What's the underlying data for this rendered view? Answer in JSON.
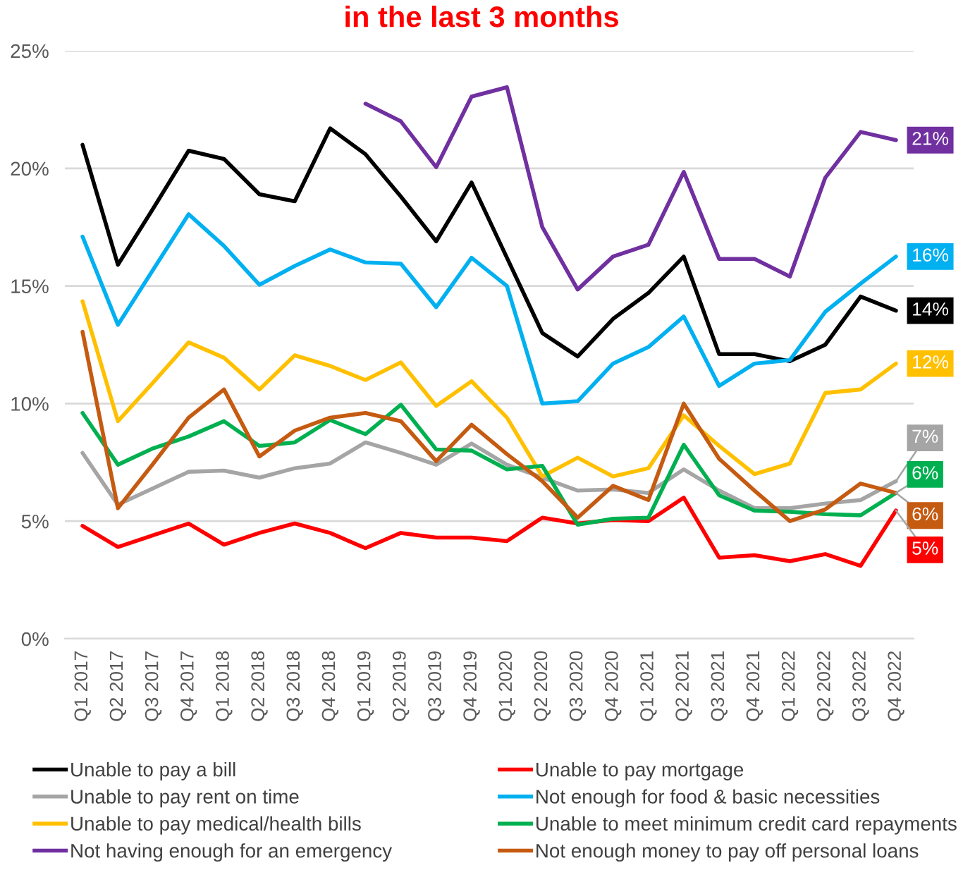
{
  "chart_data": {
    "type": "line",
    "title": "in the last 3 months",
    "categories": [
      "Q1 2017",
      "Q2 2017",
      "Q3 2017",
      "Q4 2017",
      "Q1 2018",
      "Q2 2018",
      "Q3 2018",
      "Q4 2018",
      "Q1 2019",
      "Q2 2019",
      "Q3 2019",
      "Q4 2019",
      "Q1 2020",
      "Q2 2020",
      "Q3 2020",
      "Q4 2020",
      "Q1 2021",
      "Q2 2021",
      "Q3 2021",
      "Q4 2021",
      "Q1 2022",
      "Q2 2022",
      "Q3 2022",
      "Q4 2022"
    ],
    "ylim": [
      0,
      25
    ],
    "yticks": [
      {
        "value": 0,
        "label": "0%"
      },
      {
        "value": 5,
        "label": "5%"
      },
      {
        "value": 10,
        "label": "10%"
      },
      {
        "value": 15,
        "label": "15%"
      },
      {
        "value": 20,
        "label": "20%"
      },
      {
        "value": 25,
        "label": "25%"
      }
    ],
    "grid": "y",
    "legend": "bottom",
    "series": [
      {
        "name": "Unable to pay a bill",
        "color": "#000000",
        "values": [
          21.0,
          15.9,
          18.3,
          20.75,
          20.4,
          18.9,
          18.6,
          21.7,
          20.6,
          18.8,
          16.9,
          19.4,
          16.2,
          13.0,
          12.0,
          13.6,
          14.7,
          16.25,
          12.1,
          12.1,
          11.8,
          12.5,
          14.55,
          13.95
        ],
        "value_labels": [
          null,
          null,
          null,
          null,
          null,
          null,
          null,
          null,
          null,
          null,
          null,
          null,
          null,
          null,
          null,
          null,
          null,
          null,
          null,
          null,
          null,
          null,
          null,
          "14%"
        ]
      },
      {
        "name": "Unable to pay mortgage",
        "color": "#ff0000",
        "values": [
          4.8,
          3.9,
          4.4,
          4.9,
          4.0,
          4.5,
          4.9,
          4.5,
          3.85,
          4.5,
          4.3,
          4.3,
          4.15,
          5.15,
          4.9,
          5.05,
          5.0,
          6.0,
          3.45,
          3.55,
          3.3,
          3.6,
          3.1,
          5.45
        ],
        "value_labels": [
          null,
          null,
          null,
          null,
          null,
          null,
          null,
          null,
          null,
          null,
          null,
          null,
          null,
          null,
          null,
          null,
          null,
          null,
          null,
          null,
          null,
          null,
          null,
          "5%"
        ]
      },
      {
        "name": "Unable to pay rent on time",
        "color": "#a5a5a5",
        "values": [
          7.9,
          5.7,
          6.4,
          7.1,
          7.15,
          6.85,
          7.25,
          7.45,
          8.35,
          7.9,
          7.4,
          8.3,
          7.4,
          6.85,
          6.3,
          6.35,
          6.2,
          7.2,
          6.3,
          5.55,
          5.55,
          5.75,
          5.9,
          6.7
        ],
        "value_labels": [
          null,
          null,
          null,
          null,
          null,
          null,
          null,
          null,
          null,
          null,
          null,
          null,
          null,
          null,
          null,
          null,
          null,
          null,
          null,
          null,
          null,
          null,
          null,
          "7%"
        ]
      },
      {
        "name": "Not enough for food & basic necessities",
        "color": "#00b0f0",
        "values": [
          17.1,
          13.35,
          15.7,
          18.05,
          16.7,
          15.05,
          15.85,
          16.55,
          16.0,
          15.95,
          14.1,
          16.2,
          15.0,
          10.0,
          10.1,
          11.7,
          12.4,
          13.7,
          10.75,
          11.7,
          11.85,
          13.9,
          15.1,
          16.25
        ],
        "value_labels": [
          null,
          null,
          null,
          null,
          null,
          null,
          null,
          null,
          null,
          null,
          null,
          null,
          null,
          null,
          null,
          null,
          null,
          null,
          null,
          null,
          null,
          null,
          null,
          "16%"
        ]
      },
      {
        "name": "Unable to pay medical/health bills",
        "color": "#ffc000",
        "values": [
          14.35,
          9.25,
          10.9,
          12.6,
          11.95,
          10.6,
          12.05,
          11.6,
          11.0,
          11.75,
          9.9,
          10.95,
          9.4,
          6.9,
          7.7,
          6.9,
          7.25,
          9.5,
          8.2,
          7.0,
          7.45,
          10.45,
          10.6,
          11.7
        ],
        "value_labels": [
          null,
          null,
          null,
          null,
          null,
          null,
          null,
          null,
          null,
          null,
          null,
          null,
          null,
          null,
          null,
          null,
          null,
          null,
          null,
          null,
          null,
          null,
          null,
          "12%"
        ]
      },
      {
        "name": "Unable to meet minimum credit card repayments",
        "color": "#00b050",
        "values": [
          9.6,
          7.4,
          8.1,
          8.6,
          9.25,
          8.2,
          8.35,
          9.3,
          8.7,
          9.95,
          8.05,
          8.0,
          7.2,
          7.35,
          4.85,
          5.1,
          5.15,
          8.25,
          6.1,
          5.45,
          5.4,
          5.3,
          5.25,
          6.2
        ],
        "value_labels": [
          null,
          null,
          null,
          null,
          null,
          null,
          null,
          null,
          null,
          null,
          null,
          null,
          null,
          null,
          null,
          null,
          null,
          null,
          null,
          null,
          null,
          null,
          null,
          "6%"
        ]
      },
      {
        "name": "Not having enough for an emergency",
        "color": "#7030a0",
        "values": [
          null,
          null,
          null,
          null,
          null,
          null,
          null,
          null,
          22.75,
          22.0,
          20.05,
          23.05,
          23.45,
          17.5,
          14.85,
          16.25,
          16.75,
          19.85,
          16.15,
          16.15,
          15.4,
          19.6,
          21.55,
          21.2
        ],
        "value_labels": [
          null,
          null,
          null,
          null,
          null,
          null,
          null,
          null,
          null,
          null,
          null,
          null,
          null,
          null,
          null,
          null,
          null,
          null,
          null,
          null,
          null,
          null,
          null,
          "21%"
        ]
      },
      {
        "name": "Not enough money to pay off personal loans",
        "color": "#c55a11",
        "values": [
          13.05,
          5.55,
          7.45,
          9.4,
          10.6,
          7.75,
          8.85,
          9.4,
          9.6,
          9.25,
          7.55,
          9.1,
          7.85,
          6.7,
          5.15,
          6.5,
          5.9,
          10.0,
          7.65,
          6.3,
          5.0,
          5.5,
          6.6,
          6.2
        ],
        "value_labels": [
          null,
          null,
          null,
          null,
          null,
          null,
          null,
          null,
          null,
          null,
          null,
          null,
          null,
          null,
          null,
          null,
          null,
          null,
          null,
          null,
          null,
          null,
          null,
          "6%"
        ]
      }
    ]
  }
}
